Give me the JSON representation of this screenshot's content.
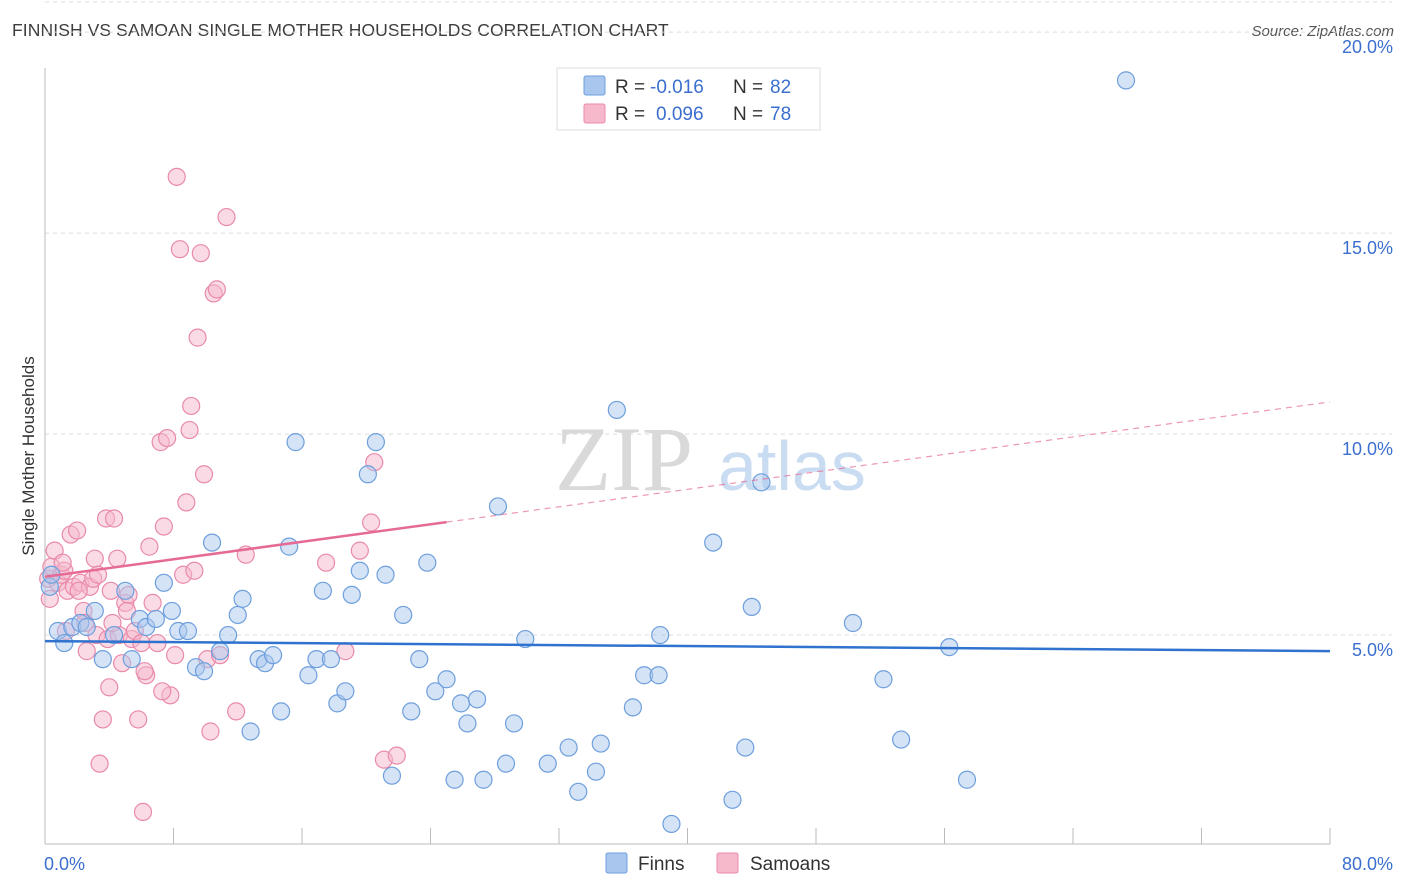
{
  "title": "FINNISH VS SAMOAN SINGLE MOTHER HOUSEHOLDS CORRELATION CHART",
  "source": "Source: ZipAtlas.com",
  "watermark": {
    "zip": "ZIP",
    "atlas": "atlas"
  },
  "colors": {
    "finns_fill": "#a9c7ee",
    "finns_stroke": "#6e9fdd",
    "finns_line": "#2f73cf",
    "samoans_fill": "#f6b8cb",
    "samoans_stroke": "#e98aab",
    "samoans_line": "#e56a95",
    "grid": "#dcdcdc",
    "axis_label": "#3b6fcf"
  },
  "legend_top": {
    "rows": [
      {
        "r_label": "R =",
        "r_value": "-0.016",
        "n_label": "N =",
        "n_value": "82",
        "series": "finns"
      },
      {
        "r_label": "R =",
        "r_value": "0.096",
        "n_label": "N =",
        "n_value": "78",
        "series": "samoans"
      }
    ]
  },
  "legend_bottom": [
    {
      "label": "Finns",
      "series": "finns"
    },
    {
      "label": "Samoans",
      "series": "samoans"
    }
  ],
  "chart_data": {
    "type": "scatter",
    "title": "FINNISH VS SAMOAN SINGLE MOTHER HOUSEHOLDS CORRELATION CHART",
    "xlabel": "",
    "ylabel": "Single Mother Households",
    "xlim": [
      0,
      80
    ],
    "ylim": [
      0,
      20.8
    ],
    "x_tick_labels": [
      {
        "value": 0,
        "label": "0.0%"
      },
      {
        "value": 80,
        "label": "80.0%"
      }
    ],
    "y_tick_labels": [
      {
        "value": 5,
        "label": "5.0%"
      },
      {
        "value": 10,
        "label": "10.0%"
      },
      {
        "value": 15,
        "label": "15.0%"
      },
      {
        "value": 20,
        "label": "20.0%"
      }
    ],
    "x_minor_ticks": [
      0,
      8,
      16,
      24,
      32,
      40,
      48,
      56,
      64,
      72,
      80
    ],
    "series": [
      {
        "name": "Finns",
        "key": "finns",
        "trend": {
          "x": [
            0,
            80
          ],
          "y": [
            4.85,
            4.6
          ],
          "solid_until": 80
        },
        "points": [
          [
            0.3,
            6.2
          ],
          [
            0.8,
            5.1
          ],
          [
            1.2,
            4.8
          ],
          [
            1.7,
            5.2
          ],
          [
            2.2,
            5.3
          ],
          [
            2.6,
            5.2
          ],
          [
            3.1,
            5.6
          ],
          [
            3.6,
            4.4
          ],
          [
            4.3,
            5.0
          ],
          [
            5.0,
            6.1
          ],
          [
            5.4,
            4.4
          ],
          [
            5.9,
            5.4
          ],
          [
            6.3,
            5.2
          ],
          [
            6.9,
            5.4
          ],
          [
            7.4,
            6.3
          ],
          [
            7.9,
            5.6
          ],
          [
            8.3,
            5.1
          ],
          [
            8.9,
            5.1
          ],
          [
            9.4,
            4.2
          ],
          [
            9.9,
            4.1
          ],
          [
            10.4,
            7.3
          ],
          [
            10.9,
            4.6
          ],
          [
            11.4,
            5.0
          ],
          [
            12.0,
            5.5
          ],
          [
            12.3,
            5.9
          ],
          [
            12.8,
            2.6
          ],
          [
            13.3,
            4.4
          ],
          [
            13.7,
            4.3
          ],
          [
            14.2,
            4.5
          ],
          [
            14.7,
            3.1
          ],
          [
            15.2,
            7.2
          ],
          [
            15.6,
            9.8
          ],
          [
            16.4,
            4.0
          ],
          [
            16.9,
            4.4
          ],
          [
            17.3,
            6.1
          ],
          [
            17.8,
            4.4
          ],
          [
            18.2,
            3.3
          ],
          [
            18.7,
            3.6
          ],
          [
            19.1,
            6.0
          ],
          [
            19.6,
            6.6
          ],
          [
            20.1,
            9.0
          ],
          [
            20.6,
            9.8
          ],
          [
            21.2,
            6.5
          ],
          [
            21.6,
            1.5
          ],
          [
            22.3,
            5.5
          ],
          [
            22.8,
            3.1
          ],
          [
            23.3,
            4.4
          ],
          [
            23.8,
            6.8
          ],
          [
            24.3,
            3.6
          ],
          [
            25.0,
            3.9
          ],
          [
            25.5,
            1.4
          ],
          [
            25.9,
            3.3
          ],
          [
            26.3,
            2.8
          ],
          [
            26.9,
            3.4
          ],
          [
            27.3,
            1.4
          ],
          [
            28.2,
            8.2
          ],
          [
            28.7,
            1.8
          ],
          [
            29.2,
            2.8
          ],
          [
            29.9,
            4.9
          ],
          [
            31.3,
            1.8
          ],
          [
            32.6,
            2.2
          ],
          [
            33.2,
            1.1
          ],
          [
            34.3,
            1.6
          ],
          [
            34.6,
            2.3
          ],
          [
            35.6,
            10.6
          ],
          [
            36.6,
            3.2
          ],
          [
            37.3,
            4.0
          ],
          [
            38.2,
            4.0
          ],
          [
            38.3,
            5.0
          ],
          [
            39.0,
            0.3
          ],
          [
            41.6,
            7.3
          ],
          [
            42.8,
            0.9
          ],
          [
            43.6,
            2.2
          ],
          [
            44.0,
            5.7
          ],
          [
            44.6,
            8.8
          ],
          [
            50.3,
            5.3
          ],
          [
            52.2,
            3.9
          ],
          [
            53.3,
            2.4
          ],
          [
            56.3,
            4.7
          ],
          [
            57.4,
            1.4
          ],
          [
            67.3,
            18.8
          ],
          [
            0.4,
            6.5
          ]
        ]
      },
      {
        "name": "Samoans",
        "key": "samoans",
        "trend": {
          "x": [
            0,
            80
          ],
          "y": [
            6.45,
            10.8
          ],
          "solid_until": 25
        },
        "points": [
          [
            0.2,
            6.4
          ],
          [
            0.4,
            6.7
          ],
          [
            0.6,
            7.1
          ],
          [
            0.8,
            6.3
          ],
          [
            1.0,
            6.5
          ],
          [
            1.2,
            6.6
          ],
          [
            1.4,
            6.1
          ],
          [
            1.6,
            7.5
          ],
          [
            1.8,
            6.2
          ],
          [
            2.0,
            7.6
          ],
          [
            2.2,
            6.3
          ],
          [
            2.4,
            5.6
          ],
          [
            2.6,
            4.6
          ],
          [
            2.8,
            6.2
          ],
          [
            3.0,
            6.4
          ],
          [
            3.1,
            6.9
          ],
          [
            3.2,
            5.0
          ],
          [
            3.4,
            1.8
          ],
          [
            3.6,
            2.9
          ],
          [
            3.8,
            7.9
          ],
          [
            3.9,
            4.9
          ],
          [
            4.0,
            3.7
          ],
          [
            4.1,
            6.1
          ],
          [
            4.3,
            7.9
          ],
          [
            4.5,
            6.9
          ],
          [
            4.6,
            5.0
          ],
          [
            4.8,
            4.3
          ],
          [
            5.0,
            5.8
          ],
          [
            5.2,
            6.0
          ],
          [
            5.4,
            4.9
          ],
          [
            5.6,
            5.1
          ],
          [
            5.8,
            2.9
          ],
          [
            6.0,
            4.8
          ],
          [
            6.1,
            0.6
          ],
          [
            6.3,
            4.0
          ],
          [
            6.5,
            7.2
          ],
          [
            6.7,
            5.8
          ],
          [
            7.0,
            4.8
          ],
          [
            7.2,
            9.8
          ],
          [
            7.4,
            7.7
          ],
          [
            7.6,
            9.9
          ],
          [
            7.8,
            3.5
          ],
          [
            8.2,
            16.4
          ],
          [
            8.4,
            14.6
          ],
          [
            8.6,
            6.5
          ],
          [
            8.8,
            8.3
          ],
          [
            9.0,
            10.1
          ],
          [
            9.1,
            10.7
          ],
          [
            9.3,
            6.6
          ],
          [
            9.5,
            12.4
          ],
          [
            9.7,
            14.5
          ],
          [
            9.9,
            9.0
          ],
          [
            10.1,
            4.4
          ],
          [
            10.3,
            2.6
          ],
          [
            10.5,
            13.5
          ],
          [
            10.7,
            13.6
          ],
          [
            10.9,
            4.5
          ],
          [
            11.3,
            15.4
          ],
          [
            11.9,
            3.1
          ],
          [
            12.5,
            7.0
          ],
          [
            17.5,
            6.8
          ],
          [
            18.7,
            4.6
          ],
          [
            19.6,
            7.1
          ],
          [
            20.3,
            7.8
          ],
          [
            20.5,
            9.3
          ],
          [
            21.1,
            1.9
          ],
          [
            21.9,
            2.0
          ],
          [
            0.3,
            5.9
          ],
          [
            1.3,
            5.1
          ],
          [
            2.5,
            5.3
          ],
          [
            3.3,
            6.5
          ],
          [
            4.2,
            5.3
          ],
          [
            5.1,
            5.6
          ],
          [
            6.2,
            4.1
          ],
          [
            7.3,
            3.6
          ],
          [
            8.1,
            4.5
          ],
          [
            2.1,
            6.1
          ],
          [
            1.1,
            6.8
          ]
        ]
      }
    ]
  }
}
